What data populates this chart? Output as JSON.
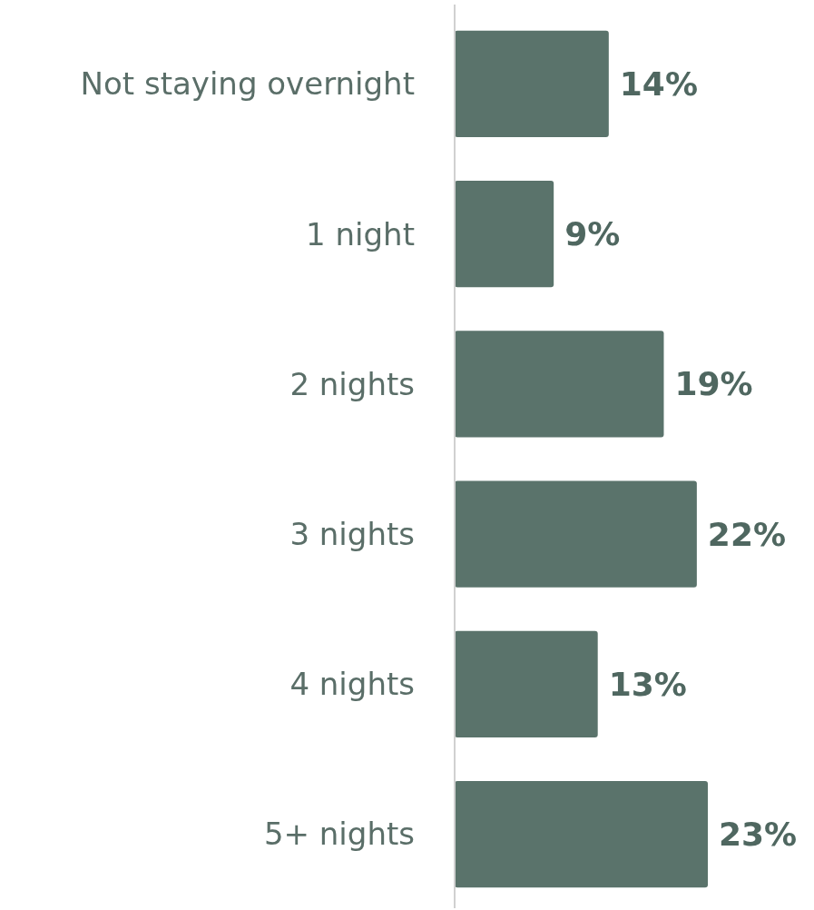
{
  "chart_data": {
    "type": "bar",
    "orientation": "horizontal",
    "categories": [
      "Not staying overnight",
      "1 night",
      "2 nights",
      "3 nights",
      "4 nights",
      "5+ nights"
    ],
    "values": [
      14,
      9,
      19,
      22,
      13,
      23
    ],
    "value_labels": [
      "14%",
      "9%",
      "19%",
      "22%",
      "13%",
      "23%"
    ],
    "color": "#5a736b"
  }
}
